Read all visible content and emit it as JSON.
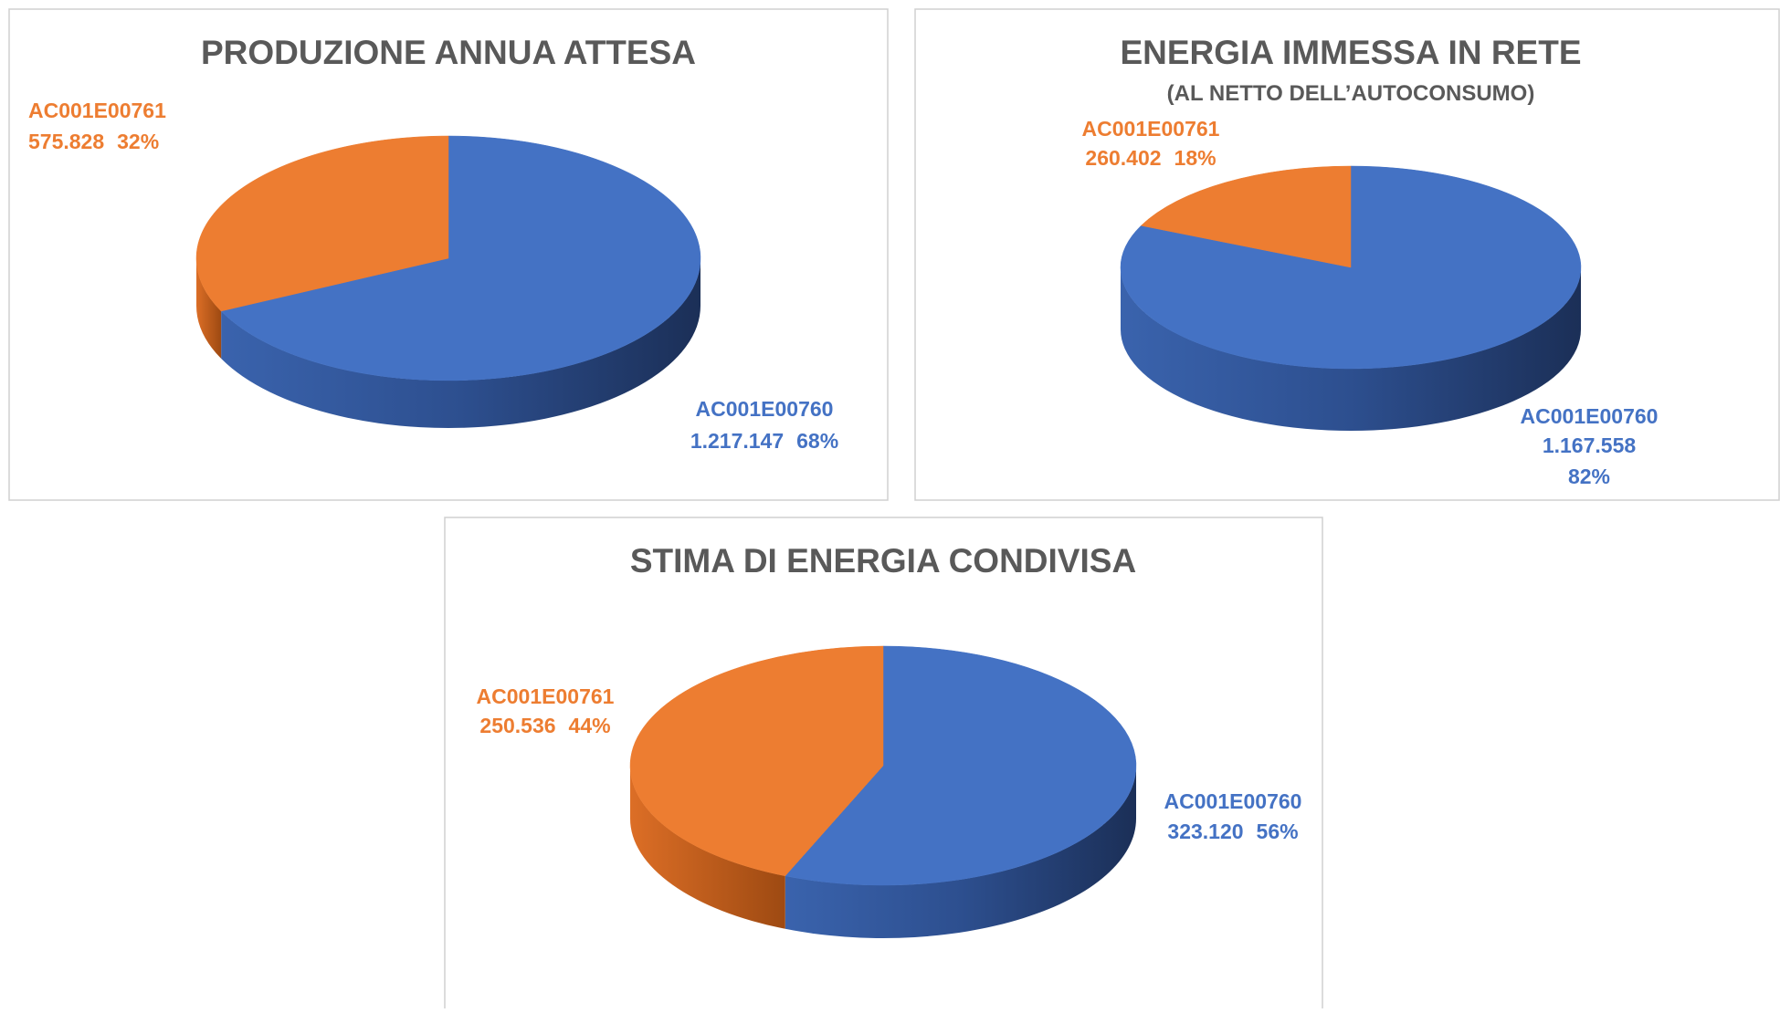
{
  "chart_data": [
    {
      "type": "pie",
      "title": "PRODUZIONE ANNUA ATTESA",
      "categories": [
        "AC001E00760",
        "AC001E00761"
      ],
      "values": [
        1217147,
        575828
      ],
      "value_labels": [
        "1.217.147",
        "575.828"
      ],
      "percent_labels": [
        "68%",
        "32%"
      ],
      "colors": [
        "#4472c4",
        "#ed7d31"
      ]
    },
    {
      "type": "pie",
      "title": "ENERGIA IMMESSA IN RETE",
      "subtitle": "(AL NETTO DELL’AUTOCONSUMO)",
      "categories": [
        "AC001E00760",
        "AC001E00761"
      ],
      "values": [
        1167558,
        260402
      ],
      "value_labels": [
        "1.167.558",
        "260.402"
      ],
      "percent_labels": [
        "82%",
        "18%"
      ],
      "colors": [
        "#4472c4",
        "#ed7d31"
      ]
    },
    {
      "type": "pie",
      "title": "STIMA DI ENERGIA CONDIVISA",
      "categories": [
        "AC001E00760",
        "AC001E00761"
      ],
      "values": [
        323120,
        250536
      ],
      "value_labels": [
        "323.120",
        "250.536"
      ],
      "percent_labels": [
        "56%",
        "44%"
      ],
      "colors": [
        "#4472c4",
        "#ed7d31"
      ]
    }
  ]
}
